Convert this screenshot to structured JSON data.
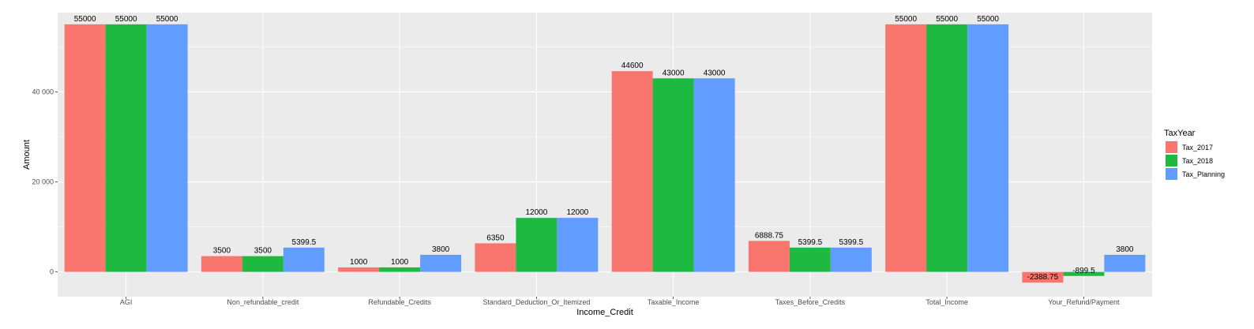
{
  "chart_data": {
    "type": "bar",
    "xlabel": "Income_Credit",
    "ylabel": "Amount",
    "ylim": [
      -5500,
      57600
    ],
    "yticks": [
      0,
      20000,
      40000
    ],
    "ytick_labels": [
      "0",
      "20 000",
      "40 000"
    ],
    "grid": true,
    "legend_position": "right",
    "legend_title": "TaxYear",
    "categories": [
      "AGI",
      "Non_refundable_credit",
      "Refundable_Credits",
      "Standard_Deduction_Or_Itemized",
      "Taxable_Income",
      "Taxes_Before_Credits",
      "Total_Income",
      "Your_Refund/Payment"
    ],
    "series": [
      {
        "name": "Tax_2017",
        "color": "#F8766D",
        "values": [
          55000,
          3500,
          1000,
          6350,
          44600,
          6888.75,
          55000,
          -2388.75
        ],
        "labels": [
          "55000",
          "3500",
          "1000",
          "6350",
          "44600",
          "6888.75",
          "55000",
          "-2388.75"
        ]
      },
      {
        "name": "Tax_2018",
        "color": "#1DB940",
        "values": [
          55000,
          3500,
          1000,
          12000,
          43000,
          5399.5,
          55000,
          -899.5
        ],
        "labels": [
          "55000",
          "3500",
          "1000",
          "12000",
          "43000",
          "5399.5",
          "55000",
          "-899.5"
        ]
      },
      {
        "name": "Tax_Planning",
        "color": "#619CFF",
        "values": [
          55000,
          5399.5,
          3800,
          12000,
          43000,
          5399.5,
          55000,
          3800
        ],
        "labels": [
          "55000",
          "5399.5",
          "3800",
          "12000",
          "43000",
          "5399.5",
          "55000",
          "3800"
        ]
      }
    ]
  }
}
